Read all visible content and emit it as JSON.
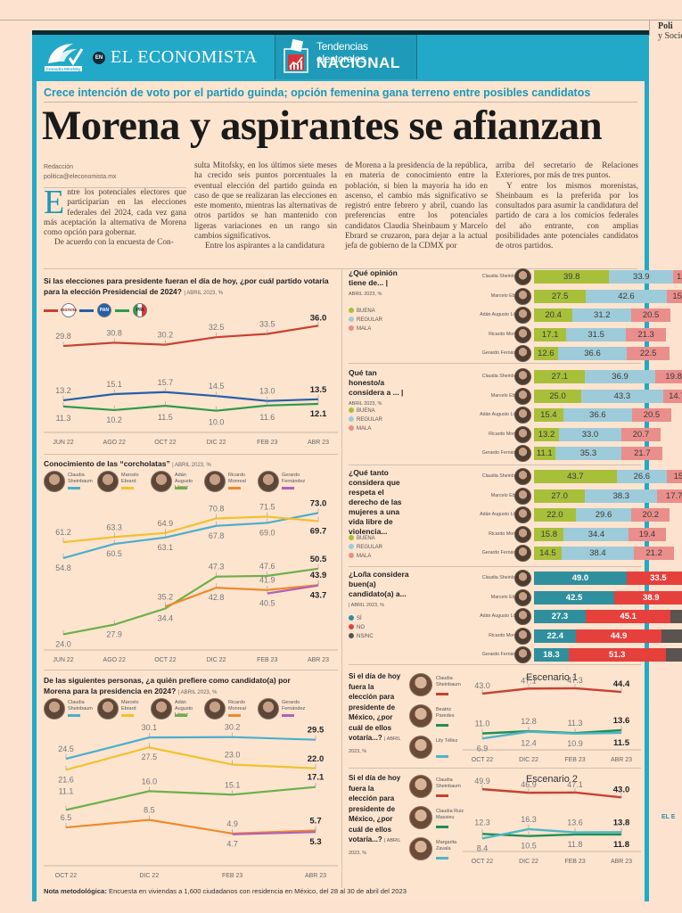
{
  "side": {
    "title": "Poli",
    "subtitle": "y Socie",
    "footer": "EL E"
  },
  "header": {
    "logo": "Consulta Mitofsky",
    "en": "EN",
    "brand": "EL ECONOMISTA",
    "section_sub": "Tendencias electorales",
    "section_main": "NACIONAL",
    "accent": "#23a9c8"
  },
  "article": {
    "kicker": "Crece intención de voto por el partido guinda; opción femenina gana terreno entre posibles candidatos",
    "headline": "Morena y aspirantes se afianzan",
    "byline": "Redacción",
    "email": "politica@eleconomista.mx",
    "dropcap": "E",
    "col1_p1": "ntre los potenciales electores que participarían en las elecciones federales del 2024, cada vez gana más aceptación la alternativa de Morena como opción para gobernar.",
    "col1_p2": "De acuerdo con la encuesta de Con-",
    "col2_p1": "sulta Mitofsky, en los últimos siete meses ha crecido seis puntos porcentuales la eventual elección del partido guinda en caso de que se realizaran las elecciones en este momento, mientras las alternativas de otros partidos se han mantenido con ligeras variaciones en un rango sin cambios significativos.",
    "col2_p2": "Entre los aspirantes a la candidatura",
    "col3_p1": "de Morena a la presidencia de la república, en materia de conocimiento entre la población, si bien la mayoría ha ido en ascenso, el cambio más significativo se registró entre febrero y abril, cuando las preferencias entre los potenciales candidatos Claudia Sheinbaum y Marcelo Ebrard se cruzaron, para dejar a la actual jefa de gobierno de la CDMX por",
    "col4_p1": "arriba del secretario de Relaciones Exteriores, por más de tres puntos.",
    "col4_p2": "Y entre los mismos morenistas, Sheinbaum es la preferida por los consultados para asumir la candidatura del partido de cara a los comicios federales del año entrante, con amplias posibilidades ante potenciales candidatos de otros partidos."
  },
  "people": [
    {
      "name": "Claudia Sheinbaum",
      "color": "#4aaecd"
    },
    {
      "name": "Marcelo Ebrard",
      "color": "#f2c12e"
    },
    {
      "name": "Adán Augusto López",
      "color": "#6cb04a"
    },
    {
      "name": "Ricardo Monreal",
      "color": "#ee8a2c"
    },
    {
      "name": "Gerardo Fernández",
      "color": "#b360b4"
    }
  ],
  "chart_data": [
    {
      "id": "party",
      "type": "line",
      "title": "Si las elecciones para presidente fueran el día de hoy, ¿por cuál partido votaría para la elección Presidencial de 2024?",
      "meta": "ABRIL 2023, %",
      "categories": [
        "JUN 22",
        "AGO 22",
        "OCT 22",
        "DIC 22",
        "FEB 23",
        "ABR 23"
      ],
      "series": [
        {
          "name": "Morena",
          "badge": "morena",
          "color": "#c8412f",
          "values": [
            29.8,
            30.8,
            30.2,
            32.5,
            33.5,
            36.0
          ]
        },
        {
          "name": "PAN",
          "badge": "PAN",
          "color": "#2460a7",
          "values": [
            13.2,
            15.1,
            15.7,
            14.5,
            13.0,
            13.5
          ]
        },
        {
          "name": "PRI",
          "badge": "PRI",
          "color": "#2e9a49",
          "values": [
            11.3,
            10.2,
            11.5,
            10.0,
            11.6,
            12.1
          ]
        }
      ]
    },
    {
      "id": "conocimiento",
      "type": "line",
      "title": "Conocimiento de las “corcholatas”",
      "meta": "ABRIL 2023, %",
      "categories": [
        "JUN 22",
        "AGO 22",
        "OCT 22",
        "DIC 22",
        "FEB 23",
        "ABR 23"
      ],
      "series": [
        {
          "name": "Claudia Sheinbaum",
          "color": "#4aaecd",
          "values": [
            54.8,
            60.5,
            63.1,
            67.8,
            69.0,
            73.0
          ]
        },
        {
          "name": "Marcelo Ebrard",
          "color": "#f2c12e",
          "values": [
            61.2,
            63.3,
            64.9,
            70.8,
            71.5,
            69.7
          ]
        },
        {
          "name": "Adán Augusto López",
          "color": "#6cb04a",
          "values": [
            24.0,
            27.9,
            34.4,
            47.3,
            47.6,
            50.5
          ]
        },
        {
          "name": "Ricardo Monreal",
          "color": "#ee8a2c",
          "values": [
            null,
            null,
            35.2,
            42.8,
            41.9,
            43.9
          ]
        },
        {
          "name": "Gerardo Fernández",
          "color": "#b360b4",
          "values": [
            null,
            null,
            null,
            null,
            40.5,
            43.7
          ]
        }
      ]
    },
    {
      "id": "preferencia",
      "type": "line",
      "title": "De las siguientes personas, ¿a quién prefiere como candidato(a) por Morena para la presidencia en 2024?",
      "meta": "ABRIL 2023, %",
      "categories": [
        "OCT 22",
        "DIC 22",
        "FEB 23",
        "ABR 23"
      ],
      "series": [
        {
          "name": "Claudia Sheinbaum",
          "color": "#4aaecd",
          "values": [
            24.5,
            30.1,
            30.2,
            29.5
          ]
        },
        {
          "name": "Marcelo Ebrard",
          "color": "#f2c12e",
          "values": [
            21.6,
            27.5,
            23.0,
            22.0
          ]
        },
        {
          "name": "Adán Augusto López",
          "color": "#6cb04a",
          "values": [
            11.1,
            16.0,
            15.1,
            17.1
          ]
        },
        {
          "name": "Ricardo Monreal",
          "color": "#ee8a2c",
          "values": [
            6.5,
            8.5,
            4.9,
            5.7
          ]
        },
        {
          "name": "Gerardo Fernández",
          "color": "#b360b4",
          "values": [
            null,
            null,
            4.7,
            5.3
          ]
        }
      ]
    },
    {
      "id": "opinion",
      "type": "bar",
      "stacked": true,
      "title": "¿Qué opinión tiene de... |",
      "meta": "ABRIL 2023, %",
      "categories": [
        "Claudia Sheinbaum",
        "Marcelo Ebrard",
        "Adán Augusto López",
        "Ricardo Monreal",
        "Gerardo Fernández"
      ],
      "series": [
        {
          "name": "BUENA",
          "color": "#a8bf3a",
          "values": [
            39.8,
            27.5,
            20.4,
            17.1,
            12.6
          ]
        },
        {
          "name": "REGULAR",
          "color": "#9ecbd9",
          "values": [
            33.9,
            42.6,
            31.2,
            31.5,
            36.6
          ]
        },
        {
          "name": "MALA",
          "color": "#ea8e8c",
          "values": [
            12.3,
            15.1,
            20.5,
            21.3,
            22.5
          ]
        }
      ]
    },
    {
      "id": "honesto",
      "type": "bar",
      "stacked": true,
      "title": "Qué tan honesto/a considera a ... |",
      "meta": "ABRIL 2023, %",
      "categories": [
        "Claudia Sheinbaum",
        "Marcelo Ebrard",
        "Adán Augusto López",
        "Ricardo Monreal",
        "Gerardo Fernández"
      ],
      "series": [
        {
          "name": "BUENA",
          "color": "#a8bf3a",
          "values": [
            27.1,
            25.0,
            15.4,
            13.2,
            11.1
          ]
        },
        {
          "name": "REGULAR",
          "color": "#9ecbd9",
          "values": [
            36.9,
            43.3,
            36.6,
            33.0,
            35.3
          ]
        },
        {
          "name": "MALA",
          "color": "#ea8e8c",
          "values": [
            19.8,
            14.7,
            20.5,
            20.7,
            21.7
          ]
        }
      ]
    },
    {
      "id": "mujeres",
      "type": "bar",
      "stacked": true,
      "title": "¿Qué tanto considera que respeta el derecho de las mujeres a una vida libre de violencia...",
      "meta": "",
      "categories": [
        "Claudia Sheinbaum",
        "Marcelo Ebrard",
        "Adán Augusto López",
        "Ricardo Monreal",
        "Gerardo Fernández"
      ],
      "series": [
        {
          "name": "BUENA",
          "color": "#a8bf3a",
          "values": [
            43.7,
            27.0,
            22.0,
            15.8,
            14.5
          ]
        },
        {
          "name": "REGULAR",
          "color": "#9ecbd9",
          "values": [
            26.6,
            38.3,
            29.6,
            34.4,
            38.4
          ]
        },
        {
          "name": "MALA",
          "color": "#ea8e8c",
          "values": [
            15.9,
            17.7,
            20.2,
            19.4,
            21.2
          ]
        }
      ]
    },
    {
      "id": "buen_candidato",
      "type": "bar",
      "stacked": true,
      "title": "¿Lo/la considera buen(a) candidato(a) a...",
      "meta": "| ABRIL 2023, %",
      "categories": [
        "Claudia Sheinbaum",
        "Marcelo Ebrard",
        "Adán Augusto López",
        "Ricardo Monreal",
        "Gerardo Fernández"
      ],
      "series": [
        {
          "name": "SÍ",
          "color": "#2f8f9d",
          "values": [
            49.0,
            42.5,
            27.3,
            22.4,
            18.3
          ]
        },
        {
          "name": "NO",
          "color": "#e6403c",
          "values": [
            33.5,
            38.9,
            45.1,
            44.9,
            51.3
          ]
        },
        {
          "name": "NS/NC",
          "color": "#5a5350",
          "values": [
            17.5,
            18.6,
            27.6,
            32.7,
            30.4
          ]
        }
      ]
    },
    {
      "id": "escenario1",
      "type": "line",
      "title": "Escenario 1",
      "question": "Si el día de hoy fuera la elección para presidente de México, ¿por cuál de ellos votaría...?",
      "meta": "ABRIL 2023, %",
      "categories": [
        "OCT 22",
        "DIC 22",
        "FEB 23",
        "ABR 23"
      ],
      "series": [
        {
          "name": "Claudia Sheinbaum",
          "color": "#c8412f",
          "values": [
            43.0,
            47.1,
            47.3,
            44.4
          ]
        },
        {
          "name": "Beatriz Paredes",
          "color": "#1f8f55",
          "values": [
            11.0,
            12.8,
            11.3,
            13.6
          ]
        },
        {
          "name": "Lily Téllez",
          "color": "#4fb6c4",
          "values": [
            6.9,
            12.4,
            10.9,
            11.5
          ]
        }
      ]
    },
    {
      "id": "escenario2",
      "type": "line",
      "title": "Escenario 2",
      "question": "Si el día de hoy fuera la elección para presidente de México, ¿por cuál de ellos votaría...?",
      "meta": "ABRIL 2023, %",
      "categories": [
        "OCT 22",
        "DIC 22",
        "FEB 23",
        "ABR 23"
      ],
      "series": [
        {
          "name": "Claudia Sheinbaum",
          "color": "#c8412f",
          "values": [
            49.9,
            46.9,
            47.1,
            43.0
          ]
        },
        {
          "name": "Claudia Ruiz Massieu",
          "color": "#1f8f55",
          "values": [
            12.3,
            10.5,
            11.8,
            11.8
          ]
        },
        {
          "name": "Margarita Zavala",
          "color": "#4fb6c4",
          "values": [
            8.4,
            16.3,
            13.6,
            13.8
          ]
        }
      ]
    }
  ],
  "note": {
    "label": "Nota metodológica:",
    "text": " Encuesta en viviendas a 1,600 ciudadanos con residencia en México, del 28 al 30 de abril del 2023"
  }
}
